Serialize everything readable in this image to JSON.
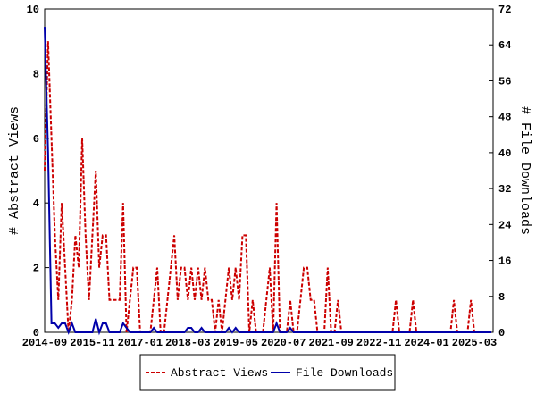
{
  "chart_data": {
    "type": "line",
    "x": [
      "2014-09",
      null,
      null,
      null,
      null,
      null,
      null,
      null,
      null,
      null,
      null,
      null,
      null,
      null,
      "2015-11",
      null,
      null,
      null,
      null,
      null,
      null,
      null,
      null,
      null,
      null,
      null,
      null,
      null,
      "2017-01",
      null,
      null,
      null,
      null,
      null,
      null,
      null,
      null,
      null,
      null,
      null,
      null,
      null,
      "2018-03",
      null,
      null,
      null,
      null,
      null,
      null,
      null,
      null,
      null,
      null,
      null,
      null,
      null,
      "2019-05",
      null,
      null,
      null,
      null,
      null,
      null,
      null,
      null,
      null,
      null,
      null,
      null,
      null,
      "2020-07",
      null,
      null,
      null,
      null,
      null,
      null,
      null,
      null,
      null,
      null,
      null,
      null,
      null,
      "2021-09",
      null,
      null,
      null,
      null,
      null,
      null,
      null,
      null,
      null,
      null,
      null,
      null,
      null,
      "2022-11",
      null,
      null,
      null,
      null,
      null,
      null,
      null,
      null,
      null,
      null,
      null,
      null,
      null,
      "2024-01",
      null,
      null,
      null,
      null,
      null,
      null,
      null,
      null,
      null,
      null,
      null,
      null,
      null,
      "2025-03",
      null,
      null,
      null,
      null,
      null
    ],
    "ylabel": "# Abstract Views",
    "y2label": "# File Downloads",
    "ylim": [
      0,
      10
    ],
    "yticks": [
      0,
      2,
      4,
      6,
      8,
      10
    ],
    "y2lim": [
      0,
      72
    ],
    "y2ticks": [
      0,
      8,
      16,
      24,
      32,
      40,
      48,
      56,
      64,
      72
    ],
    "legend": "bottom",
    "series": [
      {
        "name": "Abstract Views",
        "color": "#cc0000",
        "dash": true,
        "values": [
          5,
          9,
          6,
          3,
          1,
          4,
          2,
          0,
          1,
          3,
          2,
          6,
          3,
          1,
          3,
          5,
          2,
          3,
          3,
          1,
          1,
          1,
          1,
          4,
          0,
          1,
          2,
          2,
          0,
          0,
          0,
          0,
          1,
          2,
          0,
          0,
          1,
          2,
          3,
          1,
          2,
          2,
          1,
          2,
          1,
          2,
          1,
          2,
          1,
          1,
          0,
          1,
          0,
          1,
          2,
          1,
          2,
          1,
          3,
          3,
          0,
          1,
          0,
          0,
          0,
          1,
          2,
          0,
          4,
          0,
          0,
          0,
          1,
          0,
          0,
          1,
          2,
          2,
          1,
          1,
          0,
          0,
          0,
          2,
          0,
          0,
          1,
          0,
          0,
          0,
          0,
          0,
          0,
          0,
          0,
          0,
          0,
          0,
          0,
          0,
          0,
          0,
          0,
          1,
          0,
          0,
          0,
          0,
          1,
          0,
          0,
          0,
          0,
          0,
          0,
          0,
          0,
          0,
          0,
          0,
          1,
          0,
          0,
          0,
          0,
          1,
          0,
          0,
          0,
          0,
          0,
          0
        ]
      },
      {
        "name": "File Downloads",
        "color": "#0000aa",
        "dash": false,
        "axis": "y2",
        "values": [
          68,
          40,
          2,
          2,
          1,
          2,
          2,
          0,
          2,
          0,
          0,
          0,
          0,
          0,
          0,
          3,
          0,
          2,
          2,
          0,
          0,
          0,
          0,
          2,
          1,
          0,
          0,
          0,
          0,
          0,
          0,
          0,
          1,
          0,
          0,
          0,
          0,
          0,
          0,
          0,
          0,
          0,
          1,
          1,
          0,
          0,
          1,
          0,
          0,
          0,
          0,
          0,
          0,
          0,
          1,
          0,
          1,
          0,
          0,
          0,
          0,
          0,
          0,
          0,
          0,
          0,
          0,
          0,
          2,
          0,
          0,
          0,
          1,
          0,
          0,
          0,
          0,
          0,
          0,
          0,
          0,
          0,
          0,
          0,
          0,
          0,
          0,
          0,
          0,
          0,
          0,
          0,
          0,
          0,
          0,
          0,
          0,
          0,
          0,
          0,
          0,
          0,
          0,
          0,
          0,
          0,
          0,
          0,
          0,
          0,
          0,
          0,
          0,
          0,
          0,
          0,
          0,
          0,
          0,
          0,
          0,
          0,
          0,
          0,
          0,
          0,
          0,
          0,
          0,
          0,
          0,
          0
        ]
      }
    ]
  }
}
